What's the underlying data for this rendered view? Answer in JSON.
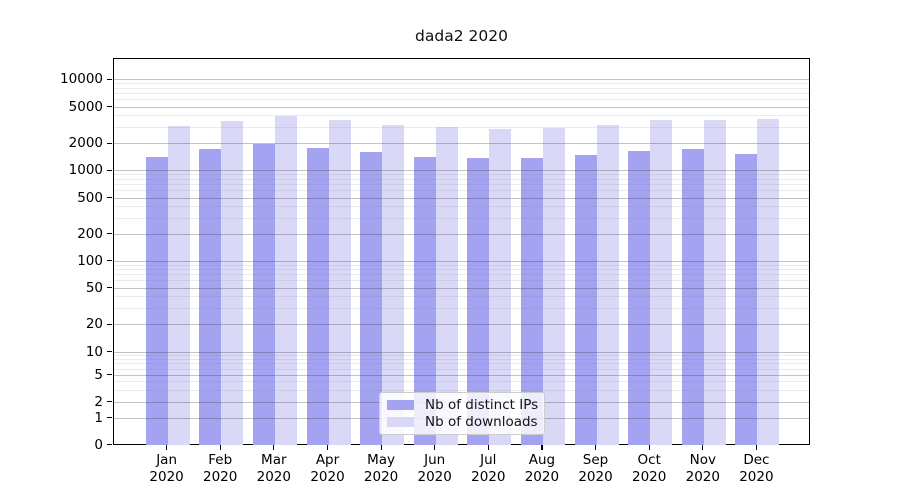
{
  "title": "dada2 2020",
  "colors": {
    "distinct_ips": "#a3a3f1",
    "downloads": "#d9d9f7",
    "axis": "#000000",
    "grid_major": "#b8b8bd",
    "grid_minor": "#e4e4e8",
    "legend_border": "#cccccc"
  },
  "legend": {
    "position": "lower-center",
    "items": [
      {
        "label": "Nb of distinct IPs",
        "color": "#a3a3f1"
      },
      {
        "label": "Nb of downloads",
        "color": "#d9d9f7"
      }
    ]
  },
  "chart_data": {
    "type": "bar",
    "title": "dada2 2020",
    "categories": [
      "Jan 2020",
      "Feb 2020",
      "Mar 2020",
      "Apr 2020",
      "May 2020",
      "Jun 2020",
      "Jul 2020",
      "Aug 2020",
      "Sep 2020",
      "Oct 2020",
      "Nov 2020",
      "Dec 2020"
    ],
    "x_tick_line1": [
      "Jan",
      "Feb",
      "Mar",
      "Apr",
      "May",
      "Jun",
      "Jul",
      "Aug",
      "Sep",
      "Oct",
      "Nov",
      "Dec"
    ],
    "x_tick_line2": "2020",
    "series": [
      {
        "name": "Nb of distinct IPs",
        "color": "#a3a3f1",
        "values": [
          1430,
          1750,
          2010,
          1810,
          1630,
          1430,
          1410,
          1410,
          1500,
          1670,
          1750,
          1560
        ]
      },
      {
        "name": "Nb of downloads",
        "color": "#d9d9f7",
        "values": [
          3160,
          3590,
          4040,
          3650,
          3220,
          3090,
          2910,
          2990,
          3200,
          3630,
          3680,
          3770
        ]
      }
    ],
    "y_ticks": [
      0,
      1,
      2,
      5,
      10,
      20,
      50,
      100,
      200,
      500,
      1000,
      2000,
      5000,
      10000
    ],
    "y_scale": "log (linear segment near 0)",
    "ylim": [
      0,
      17000
    ],
    "grid": {
      "horizontal_major": true,
      "horizontal_minor": true,
      "vertical": false
    },
    "legend_entries": [
      "Nb of distinct IPs",
      "Nb of downloads"
    ]
  }
}
